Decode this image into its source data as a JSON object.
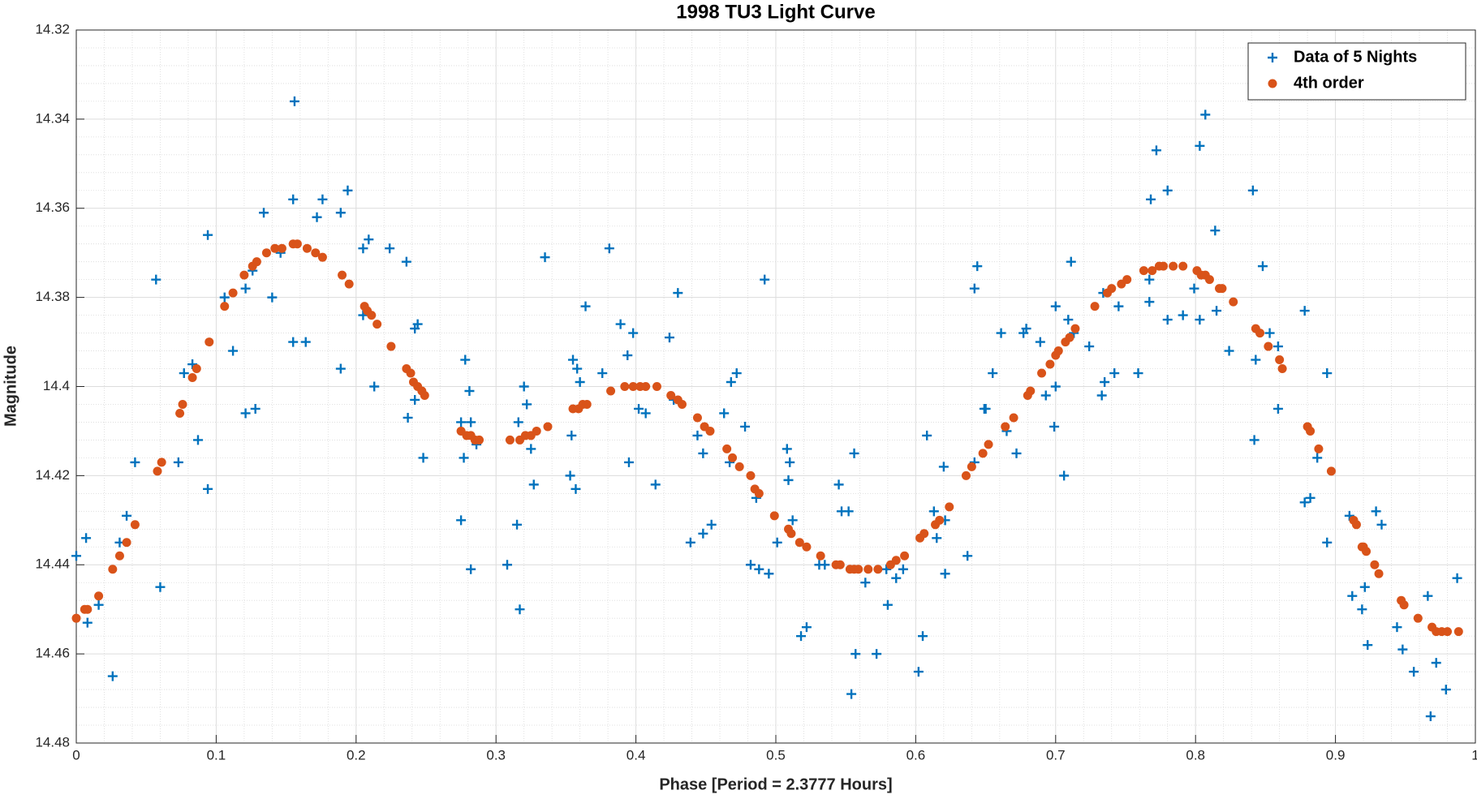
{
  "chart_data": {
    "type": "scatter",
    "title": "1998 TU3 Light Curve",
    "x_label": "Phase [Period = 2.3777 Hours]",
    "y_label": "Magnitude",
    "xlim": [
      0,
      1
    ],
    "xticks": [
      0,
      0.1,
      0.2,
      0.3,
      0.4,
      0.5,
      0.6,
      0.7,
      0.8,
      0.9,
      1
    ],
    "ylim": [
      14.32,
      14.48
    ],
    "yticks": [
      14.32,
      14.34,
      14.36,
      14.38,
      14.4,
      14.42,
      14.44,
      14.46,
      14.48
    ],
    "y_direction": "reverse",
    "grid": true,
    "minor_grid": true,
    "legend": "top-right",
    "series": [
      {
        "name": "Data of 5 Nights",
        "color": "#0072BD",
        "marker": "+",
        "x": [
          0.0,
          0.007,
          0.008,
          0.016,
          0.026,
          0.031,
          0.036,
          0.042,
          0.057,
          0.06,
          0.073,
          0.077,
          0.083,
          0.087,
          0.094,
          0.094,
          0.106,
          0.112,
          0.121,
          0.121,
          0.128,
          0.126,
          0.134,
          0.14,
          0.146,
          0.155,
          0.156,
          0.155,
          0.164,
          0.172,
          0.176,
          0.189,
          0.189,
          0.194,
          0.205,
          0.205,
          0.209,
          0.213,
          0.224,
          0.236,
          0.237,
          0.242,
          0.244,
          0.242,
          0.248,
          0.275,
          0.275,
          0.278,
          0.277,
          0.281,
          0.282,
          0.282,
          0.286,
          0.308,
          0.315,
          0.316,
          0.317,
          0.32,
          0.322,
          0.325,
          0.327,
          0.335,
          0.353,
          0.354,
          0.355,
          0.357,
          0.358,
          0.36,
          0.364,
          0.376,
          0.381,
          0.389,
          0.394,
          0.398,
          0.395,
          0.402,
          0.407,
          0.414,
          0.424,
          0.427,
          0.43,
          0.439,
          0.444,
          0.448,
          0.448,
          0.454,
          0.463,
          0.468,
          0.472,
          0.467,
          0.478,
          0.482,
          0.486,
          0.488,
          0.492,
          0.495,
          0.501,
          0.508,
          0.51,
          0.509,
          0.512,
          0.518,
          0.522,
          0.531,
          0.535,
          0.545,
          0.547,
          0.552,
          0.554,
          0.556,
          0.557,
          0.564,
          0.572,
          0.579,
          0.58,
          0.586,
          0.591,
          0.602,
          0.605,
          0.608,
          0.613,
          0.615,
          0.621,
          0.62,
          0.621,
          0.637,
          0.642,
          0.642,
          0.644,
          0.649,
          0.65,
          0.655,
          0.661,
          0.665,
          0.672,
          0.677,
          0.679,
          0.689,
          0.693,
          0.699,
          0.7,
          0.7,
          0.706,
          0.709,
          0.711,
          0.713,
          0.724,
          0.733,
          0.735,
          0.734,
          0.742,
          0.745,
          0.759,
          0.767,
          0.767,
          0.768,
          0.772,
          0.78,
          0.78,
          0.791,
          0.799,
          0.803,
          0.803,
          0.807,
          0.814,
          0.815,
          0.824,
          0.841,
          0.842,
          0.843,
          0.848,
          0.853,
          0.859,
          0.859,
          0.878,
          0.878,
          0.882,
          0.887,
          0.894,
          0.894,
          0.91,
          0.912,
          0.919,
          0.921,
          0.923,
          0.929,
          0.933,
          0.944,
          0.948,
          0.956,
          0.966,
          0.968,
          0.972,
          0.979,
          0.987
        ],
        "values": [
          14.438,
          14.434,
          14.453,
          14.449,
          14.465,
          14.435,
          14.429,
          14.417,
          14.376,
          14.445,
          14.417,
          14.397,
          14.395,
          14.412,
          14.366,
          14.423,
          14.38,
          14.392,
          14.406,
          14.378,
          14.405,
          14.374,
          14.361,
          14.38,
          14.37,
          14.358,
          14.336,
          14.39,
          14.39,
          14.362,
          14.358,
          14.361,
          14.396,
          14.356,
          14.384,
          14.369,
          14.367,
          14.4,
          14.369,
          14.372,
          14.407,
          14.387,
          14.386,
          14.403,
          14.416,
          14.43,
          14.408,
          14.394,
          14.416,
          14.401,
          14.408,
          14.441,
          14.413,
          14.44,
          14.431,
          14.408,
          14.45,
          14.4,
          14.404,
          14.414,
          14.422,
          14.371,
          14.42,
          14.411,
          14.394,
          14.423,
          14.396,
          14.399,
          14.382,
          14.397,
          14.369,
          14.386,
          14.393,
          14.388,
          14.417,
          14.405,
          14.406,
          14.422,
          14.389,
          14.403,
          14.379,
          14.435,
          14.411,
          14.415,
          14.433,
          14.431,
          14.406,
          14.399,
          14.397,
          14.417,
          14.409,
          14.44,
          14.425,
          14.441,
          14.376,
          14.442,
          14.435,
          14.414,
          14.417,
          14.421,
          14.43,
          14.456,
          14.454,
          14.44,
          14.44,
          14.422,
          14.428,
          14.428,
          14.469,
          14.415,
          14.46,
          14.444,
          14.46,
          14.441,
          14.449,
          14.443,
          14.441,
          14.464,
          14.456,
          14.411,
          14.428,
          14.434,
          14.43,
          14.418,
          14.442,
          14.438,
          14.417,
          14.378,
          14.373,
          14.405,
          14.405,
          14.397,
          14.388,
          14.41,
          14.415,
          14.388,
          14.387,
          14.39,
          14.402,
          14.409,
          14.382,
          14.4,
          14.42,
          14.385,
          14.372,
          14.388,
          14.391,
          14.402,
          14.399,
          14.379,
          14.397,
          14.382,
          14.397,
          14.381,
          14.376,
          14.358,
          14.347,
          14.356,
          14.385,
          14.384,
          14.378,
          14.346,
          14.385,
          14.339,
          14.365,
          14.383,
          14.392,
          14.356,
          14.412,
          14.394,
          14.373,
          14.388,
          14.391,
          14.405,
          14.383,
          14.426,
          14.425,
          14.416,
          14.435,
          14.397,
          14.429,
          14.447,
          14.45,
          14.445,
          14.458,
          14.428,
          14.431,
          14.454,
          14.459,
          14.464,
          14.447,
          14.474,
          14.462,
          14.468,
          14.443
        ]
      },
      {
        "name": "4th order",
        "color": "#D95319",
        "marker": "o",
        "x": [
          0.0,
          0.006,
          0.008,
          0.016,
          0.026,
          0.031,
          0.036,
          0.042,
          0.058,
          0.061,
          0.074,
          0.076,
          0.083,
          0.086,
          0.095,
          0.106,
          0.112,
          0.12,
          0.126,
          0.129,
          0.136,
          0.142,
          0.147,
          0.155,
          0.158,
          0.165,
          0.171,
          0.176,
          0.19,
          0.195,
          0.206,
          0.208,
          0.211,
          0.215,
          0.225,
          0.236,
          0.239,
          0.241,
          0.244,
          0.247,
          0.249,
          0.275,
          0.279,
          0.282,
          0.285,
          0.288,
          0.31,
          0.317,
          0.321,
          0.325,
          0.329,
          0.337,
          0.355,
          0.359,
          0.362,
          0.365,
          0.382,
          0.392,
          0.398,
          0.403,
          0.407,
          0.415,
          0.425,
          0.43,
          0.433,
          0.444,
          0.449,
          0.453,
          0.465,
          0.469,
          0.474,
          0.482,
          0.485,
          0.488,
          0.499,
          0.509,
          0.511,
          0.517,
          0.522,
          0.532,
          0.543,
          0.546,
          0.553,
          0.556,
          0.559,
          0.566,
          0.573,
          0.582,
          0.586,
          0.592,
          0.603,
          0.606,
          0.614,
          0.617,
          0.624,
          0.636,
          0.64,
          0.648,
          0.652,
          0.664,
          0.67,
          0.68,
          0.682,
          0.69,
          0.696,
          0.7,
          0.702,
          0.707,
          0.71,
          0.714,
          0.728,
          0.737,
          0.74,
          0.747,
          0.751,
          0.763,
          0.769,
          0.774,
          0.777,
          0.784,
          0.791,
          0.801,
          0.804,
          0.807,
          0.81,
          0.817,
          0.819,
          0.827,
          0.843,
          0.846,
          0.852,
          0.86,
          0.862,
          0.88,
          0.882,
          0.888,
          0.897,
          0.913,
          0.915,
          0.919,
          0.92,
          0.922,
          0.928,
          0.931,
          0.947,
          0.949,
          0.959,
          0.969,
          0.972,
          0.976,
          0.98,
          0.988
        ],
        "values": [
          14.452,
          14.45,
          14.45,
          14.447,
          14.441,
          14.438,
          14.435,
          14.431,
          14.419,
          14.417,
          14.406,
          14.404,
          14.398,
          14.396,
          14.39,
          14.382,
          14.379,
          14.375,
          14.373,
          14.372,
          14.37,
          14.369,
          14.369,
          14.368,
          14.368,
          14.369,
          14.37,
          14.371,
          14.375,
          14.377,
          14.382,
          14.383,
          14.384,
          14.386,
          14.391,
          14.396,
          14.397,
          14.399,
          14.4,
          14.401,
          14.402,
          14.41,
          14.411,
          14.411,
          14.412,
          14.412,
          14.412,
          14.412,
          14.411,
          14.411,
          14.41,
          14.409,
          14.405,
          14.405,
          14.404,
          14.404,
          14.401,
          14.4,
          14.4,
          14.4,
          14.4,
          14.4,
          14.402,
          14.403,
          14.404,
          14.407,
          14.409,
          14.41,
          14.414,
          14.416,
          14.418,
          14.42,
          14.423,
          14.424,
          14.429,
          14.432,
          14.433,
          14.435,
          14.436,
          14.438,
          14.44,
          14.44,
          14.441,
          14.441,
          14.441,
          14.441,
          14.441,
          14.44,
          14.439,
          14.438,
          14.434,
          14.433,
          14.431,
          14.43,
          14.427,
          14.42,
          14.418,
          14.415,
          14.413,
          14.409,
          14.407,
          14.402,
          14.401,
          14.397,
          14.395,
          14.393,
          14.392,
          14.39,
          14.389,
          14.387,
          14.382,
          14.379,
          14.378,
          14.377,
          14.376,
          14.374,
          14.374,
          14.373,
          14.373,
          14.373,
          14.373,
          14.374,
          14.375,
          14.375,
          14.376,
          14.378,
          14.378,
          14.381,
          14.387,
          14.388,
          14.391,
          14.394,
          14.396,
          14.409,
          14.41,
          14.414,
          14.419,
          14.43,
          14.431,
          14.436,
          14.436,
          14.437,
          14.44,
          14.442,
          14.448,
          14.449,
          14.452,
          14.454,
          14.455,
          14.455,
          14.455,
          14.455
        ]
      }
    ]
  }
}
